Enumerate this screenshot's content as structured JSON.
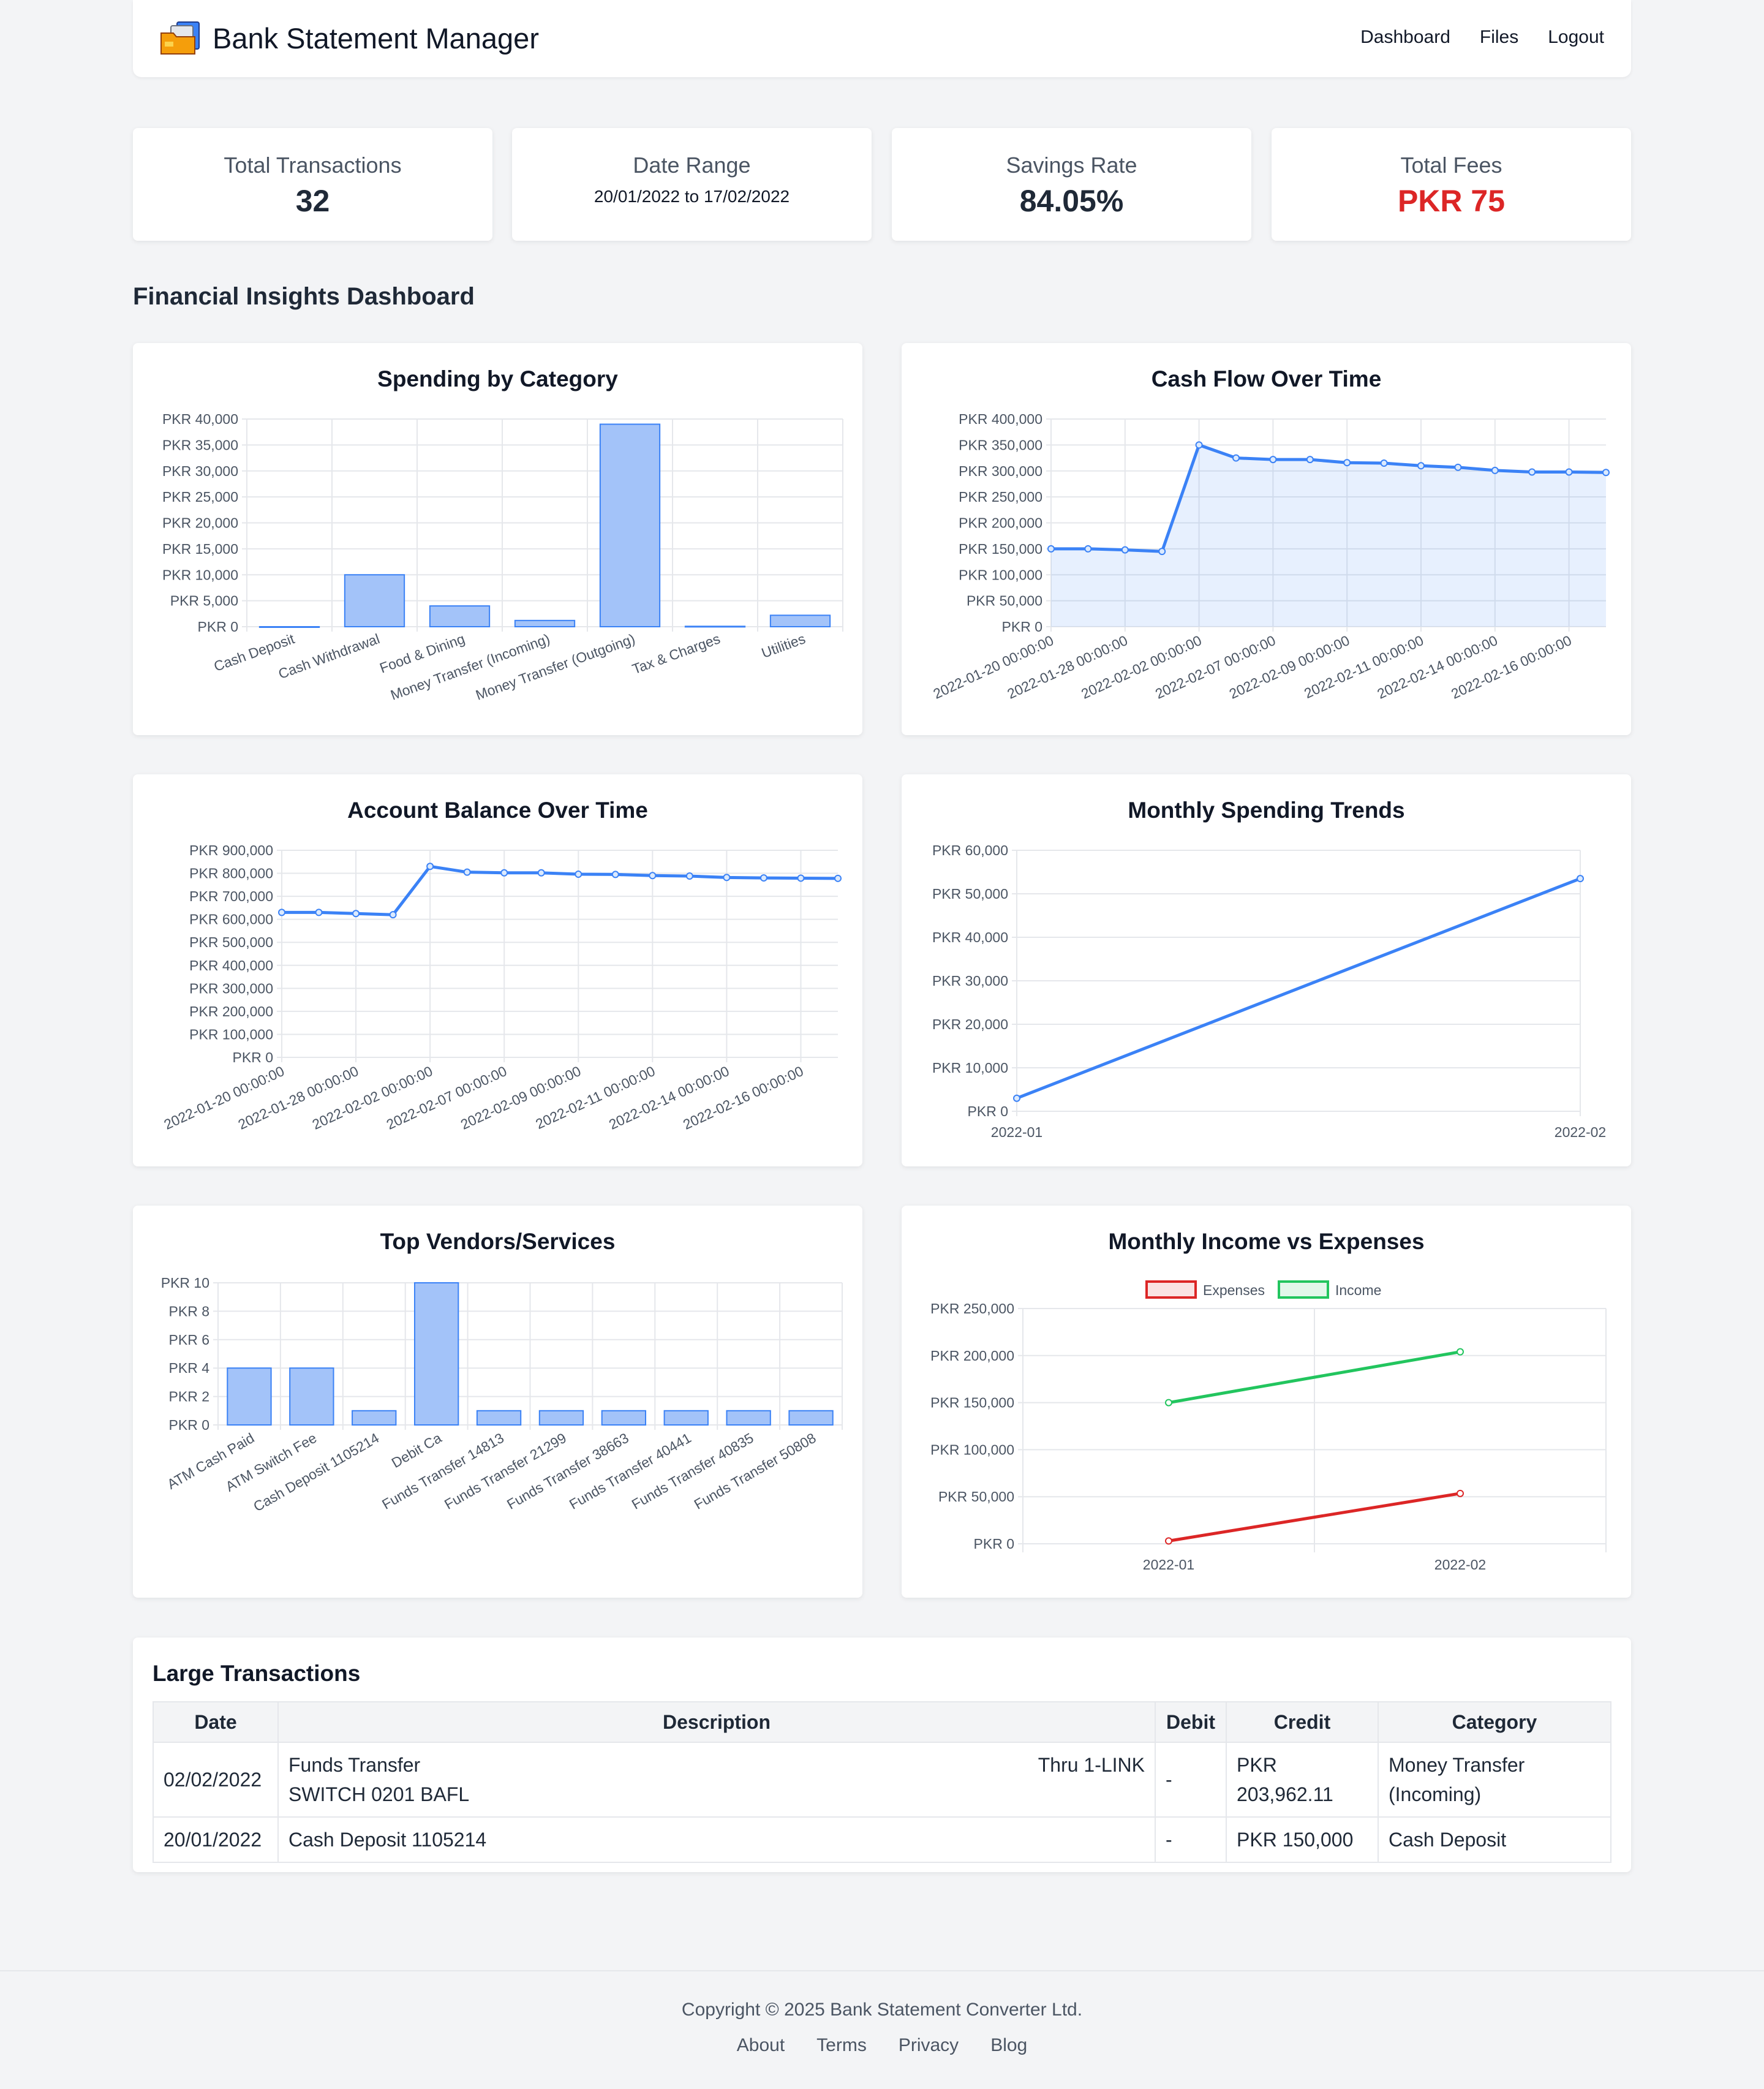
{
  "nav": {
    "title": "Bank Statement Manager",
    "links": [
      "Dashboard",
      "Files",
      "Logout"
    ]
  },
  "stats": [
    {
      "label": "Total Transactions",
      "value": "32"
    },
    {
      "label": "Date Range",
      "value": "20/01/2022 to 17/02/2022"
    },
    {
      "label": "Savings Rate",
      "value": "84.05%"
    },
    {
      "label": "Total Fees",
      "value": "PKR 75"
    }
  ],
  "section_title": "Financial Insights Dashboard",
  "colors": {
    "accent": "#3b82f6",
    "bar_fill": "#a3c3f9",
    "red": "#dc2626",
    "green": "#22c55e"
  },
  "chart_data": [
    {
      "type": "bar",
      "title": "Spending by Category",
      "categories": [
        "Cash Deposit",
        "Cash Withdrawal",
        "Food & Dining",
        "Money Transfer (Incoming)",
        "Money Transfer (Outgoing)",
        "Tax & Charges",
        "Utilities"
      ],
      "values": [
        0,
        10000,
        4000,
        1200,
        39000,
        75,
        2200
      ],
      "ylim": [
        0,
        40000
      ],
      "yticks": [
        "PKR 0",
        "PKR 5,000",
        "PKR 10,000",
        "PKR 15,000",
        "PKR 20,000",
        "PKR 25,000",
        "PKR 30,000",
        "PKR 35,000",
        "PKR 40,000"
      ],
      "grid": true
    },
    {
      "type": "area",
      "title": "Cash Flow Over Time",
      "x": [
        "2022-01-20 00:00:00",
        "2022-01-24",
        "2022-01-28 00:00:00",
        "2022-01-31",
        "2022-02-02 00:00:00",
        "2022-02-04",
        "2022-02-07 00:00:00",
        "2022-02-08",
        "2022-02-09 00:00:00",
        "2022-02-10",
        "2022-02-11 00:00:00",
        "2022-02-12",
        "2022-02-14 00:00:00",
        "2022-02-15",
        "2022-02-16 00:00:00",
        "2022-02-17"
      ],
      "xticks": [
        "2022-01-20 00:00:00",
        "2022-01-28 00:00:00",
        "2022-02-02 00:00:00",
        "2022-02-07 00:00:00",
        "2022-02-09 00:00:00",
        "2022-02-11 00:00:00",
        "2022-02-14 00:00:00",
        "2022-02-16 00:00:00"
      ],
      "values": [
        150000,
        150000,
        148000,
        145000,
        350000,
        325000,
        322000,
        322000,
        316000,
        315000,
        310000,
        307000,
        301000,
        298000,
        298000,
        297000
      ],
      "ylim": [
        0,
        400000
      ],
      "yticks": [
        "PKR 0",
        "PKR 50,000",
        "PKR 100,000",
        "PKR 150,000",
        "PKR 200,000",
        "PKR 250,000",
        "PKR 300,000",
        "PKR 350,000",
        "PKR 400,000"
      ],
      "grid": true
    },
    {
      "type": "line",
      "title": "Account Balance Over Time",
      "x": [
        "2022-01-20 00:00:00",
        "2022-01-24",
        "2022-01-28 00:00:00",
        "2022-01-31",
        "2022-02-02 00:00:00",
        "2022-02-04",
        "2022-02-07 00:00:00",
        "2022-02-08",
        "2022-02-09 00:00:00",
        "2022-02-10",
        "2022-02-11 00:00:00",
        "2022-02-12",
        "2022-02-14 00:00:00",
        "2022-02-15",
        "2022-02-16 00:00:00",
        "2022-02-17"
      ],
      "xticks": [
        "2022-01-20 00:00:00",
        "2022-01-28 00:00:00",
        "2022-02-02 00:00:00",
        "2022-02-07 00:00:00",
        "2022-02-09 00:00:00",
        "2022-02-11 00:00:00",
        "2022-02-14 00:00:00",
        "2022-02-16 00:00:00"
      ],
      "values": [
        630000,
        630000,
        625000,
        620000,
        830000,
        805000,
        802000,
        802000,
        796000,
        795000,
        790000,
        788000,
        782000,
        780000,
        779000,
        778000
      ],
      "ylim": [
        0,
        900000
      ],
      "yticks": [
        "PKR 0",
        "PKR 100,000",
        "PKR 200,000",
        "PKR 300,000",
        "PKR 400,000",
        "PKR 500,000",
        "PKR 600,000",
        "PKR 700,000",
        "PKR 800,000",
        "PKR 900,000"
      ],
      "grid": true
    },
    {
      "type": "line",
      "title": "Monthly Spending Trends",
      "categories": [
        "2022-01",
        "2022-02"
      ],
      "values": [
        3000,
        53500
      ],
      "ylim": [
        0,
        60000
      ],
      "yticks": [
        "PKR 0",
        "PKR 10,000",
        "PKR 20,000",
        "PKR 30,000",
        "PKR 40,000",
        "PKR 50,000",
        "PKR 60,000"
      ],
      "grid": true
    },
    {
      "type": "bar",
      "title": "Top Vendors/Services",
      "categories": [
        "ATM Cash Paid",
        "ATM Switch Fee",
        "Cash Deposit 1105214",
        "Debit Ca",
        "Funds Transfer 14813",
        "Funds Transfer 21299",
        "Funds Transfer 38663",
        "Funds Transfer 40441",
        "Funds Transfer 40835",
        "Funds Transfer 50808"
      ],
      "values": [
        4,
        4,
        1,
        10,
        1,
        1,
        1,
        1,
        1,
        1
      ],
      "ylim": [
        0,
        10
      ],
      "yticks": [
        "PKR 0",
        "PKR 2",
        "PKR 4",
        "PKR 6",
        "PKR 8",
        "PKR 10"
      ],
      "grid": true
    },
    {
      "type": "line",
      "title": "Monthly Income vs Expenses",
      "categories": [
        "2022-01",
        "2022-02"
      ],
      "series": [
        {
          "name": "Expenses",
          "values": [
            3000,
            53500
          ],
          "color": "#dc2626"
        },
        {
          "name": "Income",
          "values": [
            150000,
            204000
          ],
          "color": "#22c55e"
        }
      ],
      "ylim": [
        0,
        250000
      ],
      "yticks": [
        "PKR 0",
        "PKR 50,000",
        "PKR 100,000",
        "PKR 150,000",
        "PKR 200,000",
        "PKR 250,000"
      ],
      "legend": "top",
      "grid": true
    }
  ],
  "large_transactions": {
    "title": "Large Transactions",
    "headers": [
      "Date",
      "Description",
      "Debit",
      "Credit",
      "Category"
    ],
    "rows": [
      {
        "date": "02/02/2022",
        "desc_left": "Funds Transfer",
        "desc_right": "Thru 1-LINK",
        "desc_line2": "SWITCH 0201 BAFL",
        "debit": "-",
        "credit": "PKR 203,962.11",
        "category": "Money Transfer (Incoming)"
      },
      {
        "date": "20/01/2022",
        "desc_left": "Cash Deposit 1105214",
        "desc_right": "",
        "desc_line2": "",
        "debit": "-",
        "credit": "PKR 150,000",
        "category": "Cash Deposit"
      }
    ]
  },
  "footer": {
    "copyright": "Copyright © 2025 Bank Statement Converter Ltd.",
    "links": [
      "About",
      "Terms",
      "Privacy",
      "Blog"
    ]
  }
}
